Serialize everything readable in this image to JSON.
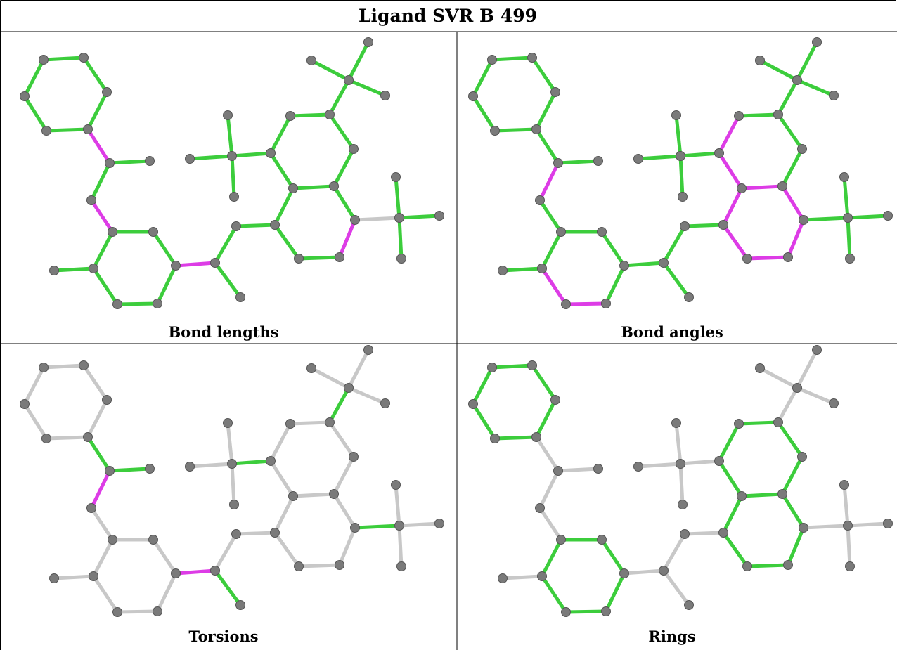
{
  "title": "Ligand SVR B 499",
  "panels": [
    {
      "label": "Bond lengths"
    },
    {
      "label": "Bond angles"
    },
    {
      "label": "Torsions"
    },
    {
      "label": "Rings"
    }
  ],
  "colors": {
    "ok": "#3ccd3c",
    "outlier": "#dd3ce6",
    "neutral": "#c8c8c8",
    "atom": "#7a7a7a",
    "grid": "#000000"
  }
}
